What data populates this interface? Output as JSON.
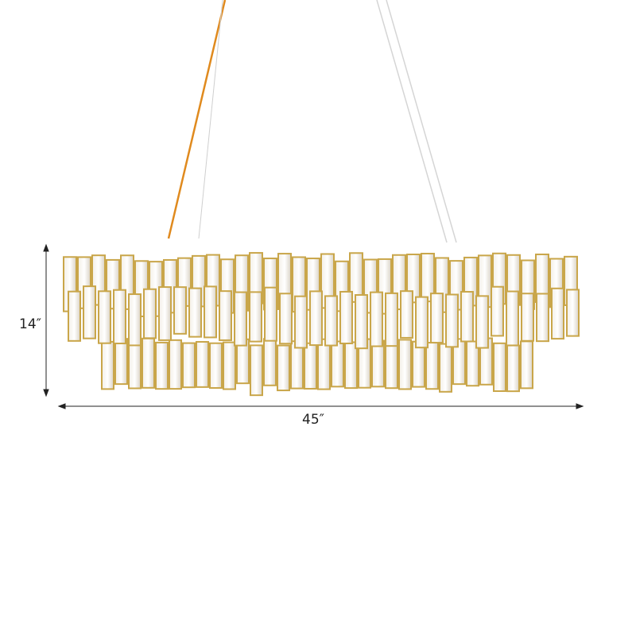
{
  "product": {
    "type": "crystal tiered chandelier",
    "frame_color": "#c9a64a",
    "cord_color": "#e08a1e"
  },
  "dimensions": {
    "height_label": "14″",
    "width_label": "45″"
  }
}
